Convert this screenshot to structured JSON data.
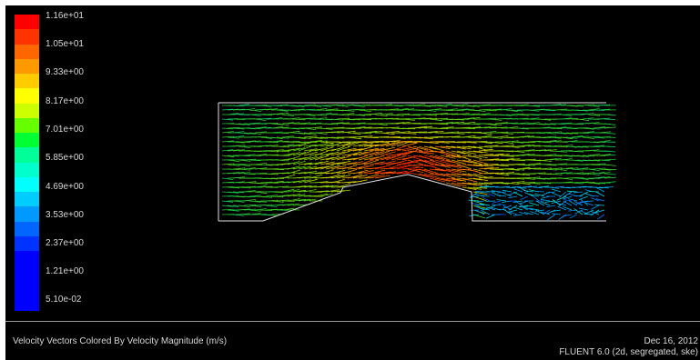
{
  "colorbar": {
    "labels": [
      "1.16e+01",
      "1.05e+01",
      "9.33e+00",
      "8.17e+00",
      "7.01e+00",
      "5.85e+00",
      "4.69e+00",
      "3.53e+00",
      "2.37e+00",
      "1.21e+00",
      "5.10e-02"
    ],
    "colors": [
      "#ff0000",
      "#ff3300",
      "#ff6600",
      "#ff9900",
      "#ffcc00",
      "#ffff00",
      "#ccff00",
      "#66ff00",
      "#00ff33",
      "#00ff99",
      "#00ffcc",
      "#00ffff",
      "#00ccff",
      "#0099ff",
      "#0066ff",
      "#0033ff",
      "#0000ff",
      "#0000ff",
      "#0000ff",
      "#0000ff"
    ]
  },
  "footer": {
    "title": "Velocity Vectors Colored By Velocity Magnitude (m/s)",
    "date": "Dec 16, 2012",
    "solver": "FLUENT 6.0 (2d, segregated, ske)"
  }
}
